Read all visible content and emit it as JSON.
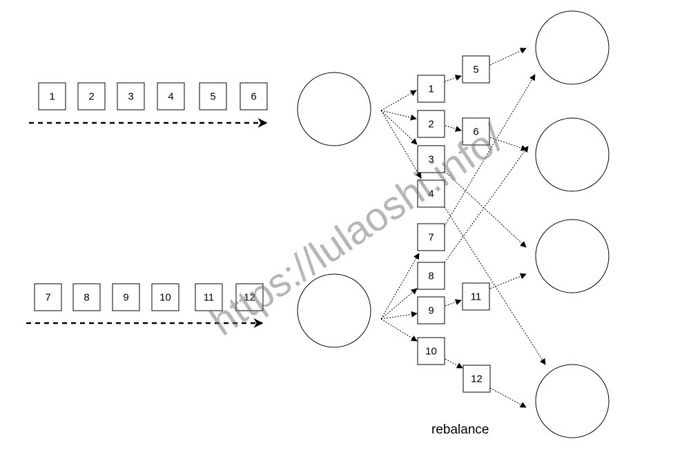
{
  "stream_top": [
    "1",
    "2",
    "3",
    "4",
    "5",
    "6"
  ],
  "stream_bottom": [
    "7",
    "8",
    "9",
    "10",
    "11",
    "12"
  ],
  "partitions_top": [
    "1",
    "2",
    "3",
    "4",
    "5",
    "6"
  ],
  "partitions_bottom": [
    "7",
    "8",
    "9",
    "10",
    "11",
    "12"
  ],
  "caption": "rebalance",
  "watermark": "https://lulaoshi.info/"
}
